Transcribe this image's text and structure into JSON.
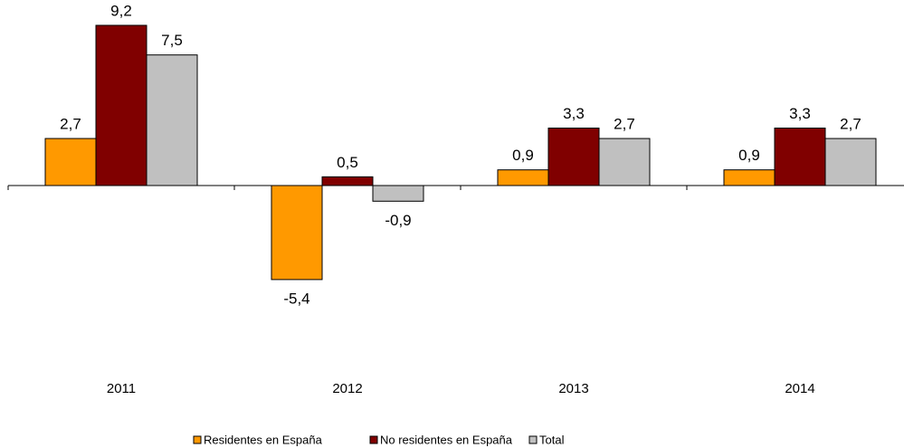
{
  "chart_data": {
    "type": "bar",
    "categories": [
      "2011",
      "2012",
      "2013",
      "2014"
    ],
    "series": [
      {
        "name": "Residentes en España",
        "color": "#ff9900",
        "values": [
          2.7,
          -5.4,
          0.9,
          0.9
        ],
        "value_labels": [
          "2,7",
          "-5,4",
          "0,9",
          "0,9"
        ]
      },
      {
        "name": "No residentes en España",
        "color": "#800000",
        "values": [
          9.2,
          0.5,
          3.3,
          3.3
        ],
        "value_labels": [
          "9,2",
          "0,5",
          "3,3",
          "3,3"
        ]
      },
      {
        "name": "Total",
        "color": "#c0c0c0",
        "values": [
          7.5,
          -0.9,
          2.7,
          2.7
        ],
        "value_labels": [
          "7,5",
          "-0,9",
          "2,7",
          "2,7"
        ]
      }
    ],
    "ylim": [
      -10,
      10
    ],
    "legend": "bottom"
  }
}
